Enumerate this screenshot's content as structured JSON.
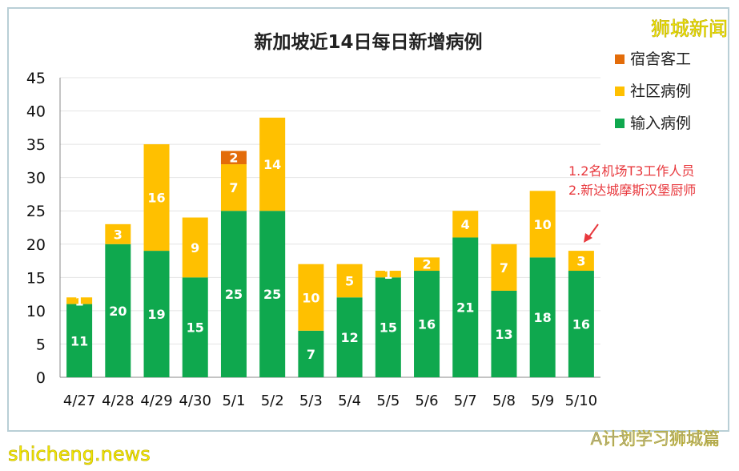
{
  "chart_data": {
    "type": "bar",
    "stacked": true,
    "title": "新加坡近14日每日新增病例",
    "categories": [
      "4/27",
      "4/28",
      "4/29",
      "4/30",
      "5/1",
      "5/2",
      "5/3",
      "5/4",
      "5/5",
      "5/6",
      "5/7",
      "5/8",
      "5/9",
      "5/10"
    ],
    "series": [
      {
        "name": "输入病例",
        "color": "#0fa84e",
        "values": [
          11,
          20,
          19,
          15,
          25,
          25,
          7,
          12,
          15,
          16,
          21,
          13,
          18,
          16
        ]
      },
      {
        "name": "社区病例",
        "color": "#ffc000",
        "values": [
          1,
          3,
          16,
          9,
          7,
          14,
          10,
          5,
          1,
          2,
          4,
          7,
          10,
          3
        ]
      },
      {
        "name": "宿舍客工",
        "color": "#e36c0a",
        "values": [
          0,
          0,
          0,
          0,
          2,
          0,
          0,
          0,
          0,
          0,
          0,
          0,
          0,
          0
        ]
      }
    ],
    "legend_order": [
      "宿舍客工",
      "社区病例",
      "输入病例"
    ],
    "yticks": [
      0,
      5,
      10,
      15,
      20,
      25,
      30,
      35,
      40,
      45
    ],
    "ylim": [
      0,
      45
    ],
    "grid": true,
    "legend": "right",
    "annotation": [
      "1.2名机场T3工作人员",
      "2.新达城摩斯汉堡厨师"
    ],
    "annotation_color": "#e8383d"
  },
  "watermarks": {
    "brand": "狮城新闻",
    "site": "shicheng.news",
    "wechat": "A计划学习狮城篇"
  }
}
